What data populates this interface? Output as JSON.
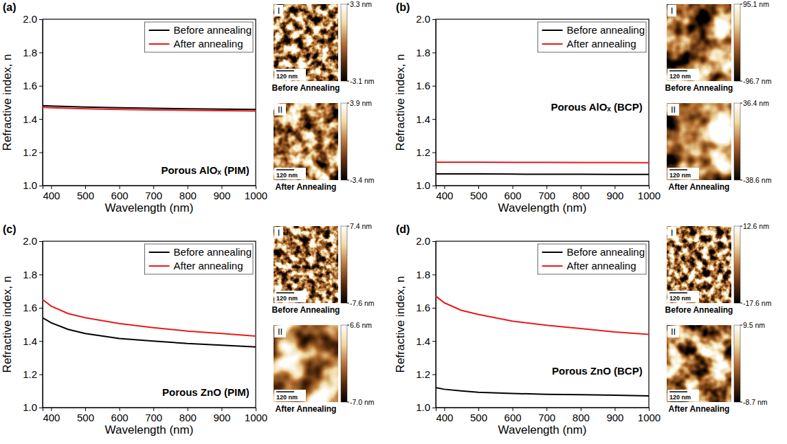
{
  "chart_data": [
    {
      "type": "line",
      "panel": "(a)",
      "annotation": "Porous AlOₓ (PIM)",
      "x_label": "Wavelength (nm)",
      "y_label": "Refractive index, n",
      "x": [
        375,
        400,
        450,
        500,
        600,
        700,
        800,
        900,
        1000
      ],
      "xlim": [
        375,
        1000
      ],
      "xticks": [
        400,
        500,
        600,
        700,
        800,
        900,
        1000
      ],
      "ylim": [
        1.0,
        2.0
      ],
      "yticks": [
        {
          "value": 1.0,
          "label": "1.0"
        },
        1.2,
        1.4,
        1.6,
        1.8,
        {
          "value": 2.0,
          "label": "2.0"
        }
      ],
      "grid": false,
      "legend": "upper right",
      "series": [
        {
          "name": "Before annealing",
          "color": "#000000",
          "values": [
            1.48,
            1.478,
            1.475,
            1.472,
            1.468,
            1.465,
            1.462,
            1.46,
            1.458
          ]
        },
        {
          "name": "After annealing",
          "color": "#e8191b",
          "values": [
            1.47,
            1.468,
            1.465,
            1.462,
            1.458,
            1.455,
            1.452,
            1.45,
            1.448
          ]
        }
      ],
      "images": [
        {
          "label": "I",
          "caption": "Before Annealing",
          "scale_bar": "120 nm",
          "colorbar_range": [
            -3.1,
            3.3
          ],
          "colorbar_ticks": [
            {
              "value": 3.3,
              "label": "3.3 nm"
            },
            {
              "value": -3.1,
              "label": "-3.1 nm"
            }
          ]
        },
        {
          "label": "II",
          "caption": "After Annealing",
          "scale_bar": "120 nm",
          "colorbar_range": [
            -3.4,
            3.9
          ],
          "colorbar_ticks": [
            {
              "value": 3.9,
              "label": "3.9 nm"
            },
            {
              "value": -3.4,
              "label": "-3.4 nm"
            }
          ]
        }
      ]
    },
    {
      "type": "line",
      "panel": "(b)",
      "annotation": "Porous AlOₓ (BCP)",
      "x_label": "Wavelength (nm)",
      "y_label": "Refractive index, n",
      "x": [
        375,
        400,
        450,
        500,
        600,
        700,
        800,
        900,
        1000
      ],
      "xlim": [
        375,
        1000
      ],
      "xticks": [
        400,
        500,
        600,
        700,
        800,
        900,
        1000
      ],
      "ylim": [
        1.0,
        2.0
      ],
      "yticks": [
        {
          "value": 1.0,
          "label": "1.0"
        },
        1.2,
        1.4,
        1.6,
        1.8,
        {
          "value": 2.0,
          "label": "2.0"
        }
      ],
      "grid": false,
      "legend": "upper right",
      "series": [
        {
          "name": "Before annealing",
          "color": "#000000",
          "values": [
            1.07,
            1.07,
            1.07,
            1.07,
            1.069,
            1.068,
            1.068,
            1.067,
            1.067
          ]
        },
        {
          "name": "After annealing",
          "color": "#e8191b",
          "values": [
            1.14,
            1.14,
            1.14,
            1.14,
            1.139,
            1.139,
            1.138,
            1.138,
            1.137
          ]
        }
      ],
      "images": [
        {
          "label": "I",
          "caption": "Before Annealing",
          "scale_bar": "120 nm",
          "colorbar_range": [
            -96.7,
            95.1
          ],
          "colorbar_ticks": [
            {
              "value": 95.1,
              "label": "95.1 nm"
            },
            {
              "value": -96.7,
              "label": "-96.7 nm"
            }
          ]
        },
        {
          "label": "II",
          "caption": "After Annealing",
          "scale_bar": "120 nm",
          "colorbar_range": [
            -38.6,
            36.4
          ],
          "colorbar_ticks": [
            {
              "value": 36.4,
              "label": "36.4 nm"
            },
            {
              "value": -38.6,
              "label": "-38.6 nm"
            }
          ]
        }
      ]
    },
    {
      "type": "line",
      "panel": "(c)",
      "annotation": "Porous ZnO (PIM)",
      "x_label": "Wavelength (nm)",
      "y_label": "Refractive index, n",
      "x": [
        375,
        400,
        450,
        500,
        600,
        700,
        800,
        900,
        1000
      ],
      "xlim": [
        375,
        1000
      ],
      "xticks": [
        400,
        500,
        600,
        700,
        800,
        900,
        1000
      ],
      "ylim": [
        1.0,
        2.0
      ],
      "yticks": [
        {
          "value": 1.0,
          "label": "1.0"
        },
        1.2,
        1.4,
        1.6,
        1.8,
        {
          "value": 2.0,
          "label": "2.0"
        }
      ],
      "grid": false,
      "legend": "upper right",
      "series": [
        {
          "name": "Before annealing",
          "color": "#000000",
          "values": [
            1.54,
            1.51,
            1.47,
            1.445,
            1.415,
            1.4,
            1.385,
            1.375,
            1.365
          ]
        },
        {
          "name": "After annealing",
          "color": "#e8191b",
          "values": [
            1.65,
            1.61,
            1.565,
            1.54,
            1.505,
            1.48,
            1.46,
            1.445,
            1.43
          ]
        }
      ],
      "images": [
        {
          "label": "I",
          "caption": "Before Annealing",
          "scale_bar": "120 nm",
          "colorbar_range": [
            -7.6,
            7.4
          ],
          "colorbar_ticks": [
            {
              "value": 7.4,
              "label": "7.4 nm"
            },
            {
              "value": -7.6,
              "label": "-7.6 nm"
            }
          ]
        },
        {
          "label": "II",
          "caption": "After Annealing",
          "scale_bar": "120 nm",
          "colorbar_range": [
            -7.0,
            6.6
          ],
          "colorbar_ticks": [
            {
              "value": 6.6,
              "label": "6.6 nm"
            },
            {
              "value": -7.0,
              "label": "-7.0 nm"
            }
          ]
        }
      ]
    },
    {
      "type": "line",
      "panel": "(d)",
      "annotation": "Porous ZnO (BCP)",
      "x_label": "Wavelength (nm)",
      "y_label": "Refractive index, n",
      "x": [
        375,
        400,
        450,
        500,
        600,
        700,
        800,
        900,
        1000
      ],
      "xlim": [
        375,
        1000
      ],
      "xticks": [
        400,
        500,
        600,
        700,
        800,
        900,
        1000
      ],
      "ylim": [
        1.0,
        2.0
      ],
      "yticks": [
        {
          "value": 1.0,
          "label": "1.0"
        },
        1.2,
        1.4,
        1.6,
        1.8,
        {
          "value": 2.0,
          "label": "2.0"
        }
      ],
      "grid": false,
      "legend": "upper right",
      "series": [
        {
          "name": "Before annealing",
          "color": "#000000",
          "values": [
            1.12,
            1.11,
            1.1,
            1.092,
            1.085,
            1.08,
            1.077,
            1.074,
            1.07
          ]
        },
        {
          "name": "After annealing",
          "color": "#e8191b",
          "values": [
            1.67,
            1.63,
            1.585,
            1.56,
            1.52,
            1.495,
            1.475,
            1.455,
            1.44
          ]
        }
      ],
      "images": [
        {
          "label": "I",
          "caption": "Before Annealing",
          "scale_bar": "120 nm",
          "colorbar_range": [
            -17.6,
            12.6
          ],
          "colorbar_ticks": [
            {
              "value": 12.6,
              "label": "12.6 nm"
            },
            {
              "value": -17.6,
              "label": "-17.6 nm"
            }
          ]
        },
        {
          "label": "II",
          "caption": "After Annealing",
          "scale_bar": "120 nm",
          "colorbar_range": [
            -8.7,
            9.5
          ],
          "colorbar_ticks": [
            {
              "value": 9.5,
              "label": "9.5 nm"
            },
            {
              "value": -8.7,
              "label": "-8.7 nm"
            }
          ]
        }
      ]
    }
  ]
}
